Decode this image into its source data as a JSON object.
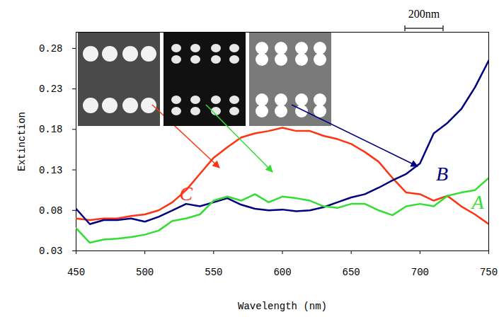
{
  "chart_data": {
    "type": "line",
    "x_label": "Wavelength (nm)",
    "y_label": "Extinction",
    "x": [
      450,
      460,
      470,
      480,
      490,
      500,
      510,
      520,
      530,
      540,
      550,
      560,
      570,
      580,
      590,
      600,
      610,
      620,
      630,
      640,
      650,
      660,
      670,
      680,
      690,
      700,
      710,
      720,
      730,
      740,
      750
    ],
    "series": [
      {
        "name": "C",
        "color": "#ff3311",
        "label_x": 530,
        "label_y": 0.1,
        "values": [
          0.07,
          0.068,
          0.07,
          0.07,
          0.073,
          0.075,
          0.08,
          0.09,
          0.105,
          0.125,
          0.145,
          0.158,
          0.17,
          0.175,
          0.178,
          0.182,
          0.178,
          0.178,
          0.172,
          0.168,
          0.162,
          0.152,
          0.14,
          0.12,
          0.102,
          0.1,
          0.092,
          0.098,
          0.085,
          0.075,
          0.063
        ]
      },
      {
        "name": "B",
        "color": "#000080",
        "label_x": 716,
        "label_y": 0.125,
        "values": [
          0.082,
          0.063,
          0.068,
          0.068,
          0.07,
          0.066,
          0.072,
          0.08,
          0.088,
          0.085,
          0.09,
          0.095,
          0.087,
          0.082,
          0.08,
          0.081,
          0.079,
          0.08,
          0.084,
          0.09,
          0.096,
          0.1,
          0.108,
          0.117,
          0.125,
          0.138,
          0.175,
          0.188,
          0.205,
          0.232,
          0.265
        ]
      },
      {
        "name": "A",
        "color": "#33dd33",
        "label_x": 742,
        "label_y": 0.09,
        "values": [
          0.058,
          0.04,
          0.044,
          0.045,
          0.047,
          0.05,
          0.055,
          0.067,
          0.07,
          0.075,
          0.092,
          0.097,
          0.092,
          0.1,
          0.09,
          0.097,
          0.095,
          0.092,
          0.085,
          0.083,
          0.088,
          0.088,
          0.08,
          0.074,
          0.085,
          0.088,
          0.085,
          0.098,
          0.102,
          0.105,
          0.12
        ]
      }
    ],
    "xlim": [
      450,
      750
    ],
    "xticks": [
      450,
      500,
      550,
      600,
      650,
      700,
      750
    ],
    "ylim": [
      0.03,
      0.3
    ],
    "yticks": [
      0.03,
      0.08,
      0.13,
      0.18,
      0.23,
      0.28
    ],
    "grid": false,
    "inset_scale_bar": "200nm"
  }
}
